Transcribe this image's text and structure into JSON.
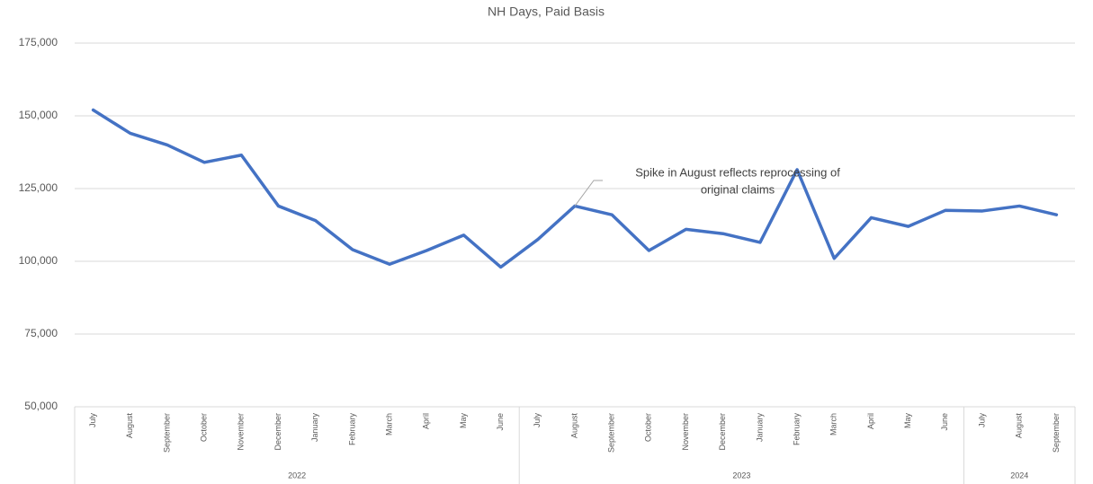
{
  "chart_data": {
    "type": "line",
    "title": "NH Days, Paid Basis",
    "category_groups": [
      {
        "label": "2022",
        "categories": [
          "July",
          "August",
          "September",
          "October",
          "November",
          "December",
          "January",
          "February",
          "March",
          "April",
          "May",
          "June"
        ]
      },
      {
        "label": "2023",
        "categories": [
          "July",
          "August",
          "September",
          "October",
          "November",
          "December",
          "January",
          "February",
          "March",
          "April",
          "May",
          "June"
        ]
      },
      {
        "label": "2024",
        "categories": [
          "July",
          "August",
          "September"
        ]
      }
    ],
    "series": [
      {
        "name": "NH Days",
        "color": "#4472c4",
        "values": [
          152000,
          144000,
          140000,
          134000,
          136500,
          119000,
          114000,
          104000,
          99000,
          103700,
          109000,
          98000,
          107500,
          119000,
          116000,
          103700,
          111000,
          109500,
          106500,
          131500,
          101000,
          115000,
          112000,
          117500,
          117300,
          119000,
          116000
        ]
      }
    ],
    "ylim": [
      50000,
      175000
    ],
    "yticks": [
      {
        "value": 50000,
        "label": "50,000"
      },
      {
        "value": 75000,
        "label": "75,000"
      },
      {
        "value": 100000,
        "label": "100,000"
      },
      {
        "value": 125000,
        "label": "125,000"
      },
      {
        "value": 150000,
        "label": "150,000"
      },
      {
        "value": 175000,
        "label": "175,000"
      }
    ],
    "grid": true,
    "annotation_lines": [
      "Spike in August reflects reprocessing of",
      "original claims"
    ]
  }
}
